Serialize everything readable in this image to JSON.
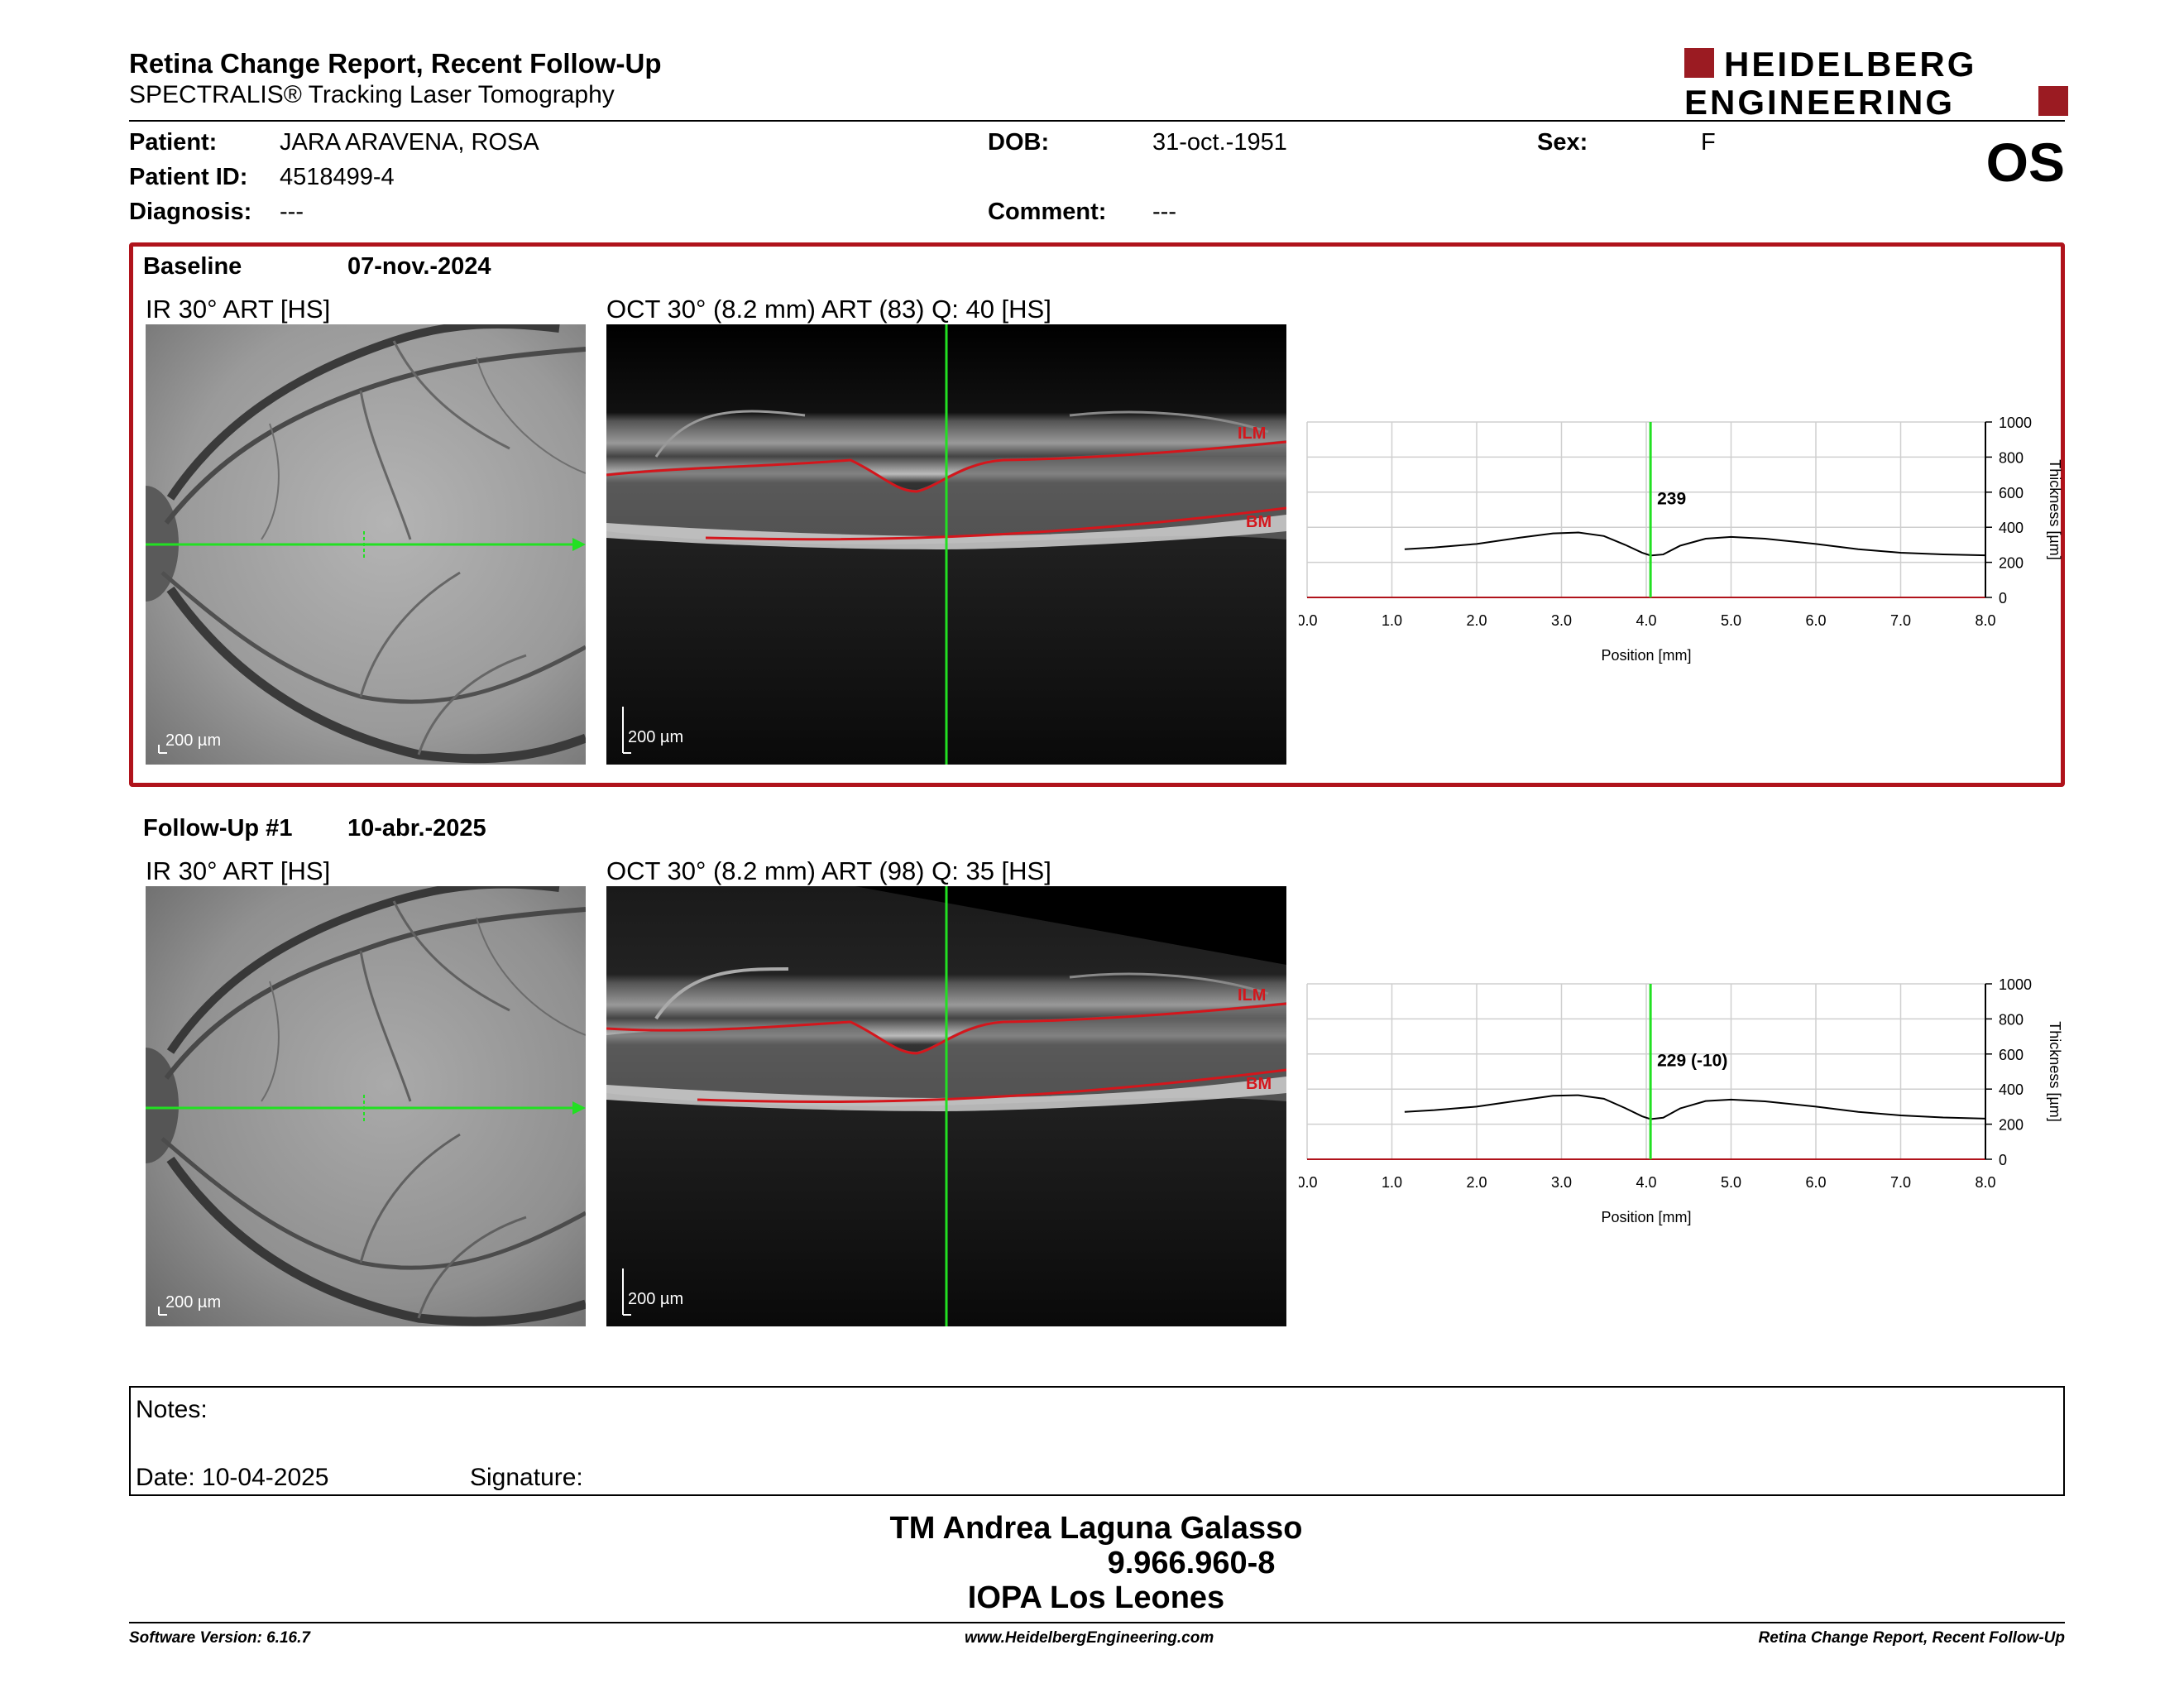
{
  "header": {
    "title": "Retina Change Report, Recent Follow-Up",
    "subtitle": "SPECTRALIS® Tracking Laser Tomography",
    "logo_line1": "HEIDELBERG",
    "logo_line2": "ENGINEERING",
    "eye": "OS"
  },
  "patient": {
    "patient_label": "Patient:",
    "patient_value": "JARA ARAVENA, ROSA",
    "id_label": "Patient ID:",
    "id_value": "4518499-4",
    "diagnosis_label": "Diagnosis:",
    "diagnosis_value": "---",
    "dob_label": "DOB:",
    "dob_value": "31-oct.-1951",
    "comment_label": "Comment:",
    "comment_value": "---",
    "sex_label": "Sex:",
    "sex_value": "F"
  },
  "baseline": {
    "label": "Baseline",
    "date": "07-nov.-2024",
    "ir_caption": "IR 30° ART [HS]",
    "oct_caption": "OCT 30° (8.2 mm) ART (83) Q: 40 [HS]",
    "ir_scale": "200 µm",
    "oct_scale": "200 µm",
    "ilm": "ILM",
    "bm": "BM"
  },
  "followup": {
    "label": "Follow-Up #1",
    "date": "10-abr.-2025",
    "ir_caption": "IR 30° ART [HS]",
    "oct_caption": "OCT 30° (8.2 mm) ART (98) Q: 35 [HS]",
    "ir_scale": "200 µm",
    "oct_scale": "200 µm",
    "ilm": "ILM",
    "bm": "BM"
  },
  "notes": {
    "notes_label": "Notes:",
    "date_label": "Date: 10-04-2025",
    "signature_label": "Signature:"
  },
  "signature": {
    "name": "TM Andrea Laguna Galasso",
    "id": "9.966.960-8",
    "org": "IOPA Los Leones"
  },
  "footer": {
    "left": "Software Version: 6.16.7",
    "center": "www.HeidelbergEngineering.com",
    "right": "Retina Change Report, Recent Follow-Up"
  },
  "colors": {
    "accent_red": "#b0131b",
    "scan_green": "#22e022",
    "segmentation_red": "#d4161c"
  },
  "chart_data": [
    {
      "type": "line",
      "xlabel": "Position [mm]",
      "ylabel": "Thickness [µm]",
      "xlim": [
        0,
        8
      ],
      "ylim": [
        0,
        1000
      ],
      "x_ticks": [
        "0.0",
        "1.0",
        "2.0",
        "3.0",
        "4.0",
        "5.0",
        "6.0",
        "7.0",
        "8.0"
      ],
      "y_ticks": [
        "0",
        "200",
        "400",
        "600",
        "800",
        "1000"
      ],
      "grid": true,
      "marker_x": 4.05,
      "marker_label": "239",
      "series": [
        {
          "x": [
            1.15,
            1.5,
            2.0,
            2.5,
            2.9,
            3.2,
            3.5,
            3.75,
            3.95,
            4.05,
            4.2,
            4.4,
            4.7,
            5.0,
            5.4,
            6.0,
            6.5,
            7.0,
            7.5,
            8.0
          ],
          "y": [
            275,
            285,
            305,
            340,
            365,
            370,
            350,
            300,
            255,
            239,
            245,
            295,
            335,
            345,
            335,
            305,
            275,
            255,
            245,
            240
          ]
        }
      ]
    },
    {
      "type": "line",
      "xlabel": "Position [mm]",
      "ylabel": "Thickness [µm]",
      "xlim": [
        0,
        8
      ],
      "ylim": [
        0,
        1000
      ],
      "x_ticks": [
        "0.0",
        "1.0",
        "2.0",
        "3.0",
        "4.0",
        "5.0",
        "6.0",
        "7.0",
        "8.0"
      ],
      "y_ticks": [
        "0",
        "200",
        "400",
        "600",
        "800",
        "1000"
      ],
      "grid": true,
      "marker_x": 4.05,
      "marker_label": "229 (-10)",
      "series": [
        {
          "x": [
            1.15,
            1.5,
            2.0,
            2.5,
            2.9,
            3.2,
            3.5,
            3.75,
            3.95,
            4.05,
            4.2,
            4.4,
            4.7,
            5.0,
            5.4,
            6.0,
            6.5,
            7.0,
            7.5,
            8.0
          ],
          "y": [
            270,
            280,
            300,
            335,
            362,
            365,
            345,
            292,
            245,
            229,
            237,
            290,
            332,
            340,
            330,
            300,
            270,
            250,
            238,
            232
          ]
        }
      ]
    }
  ]
}
